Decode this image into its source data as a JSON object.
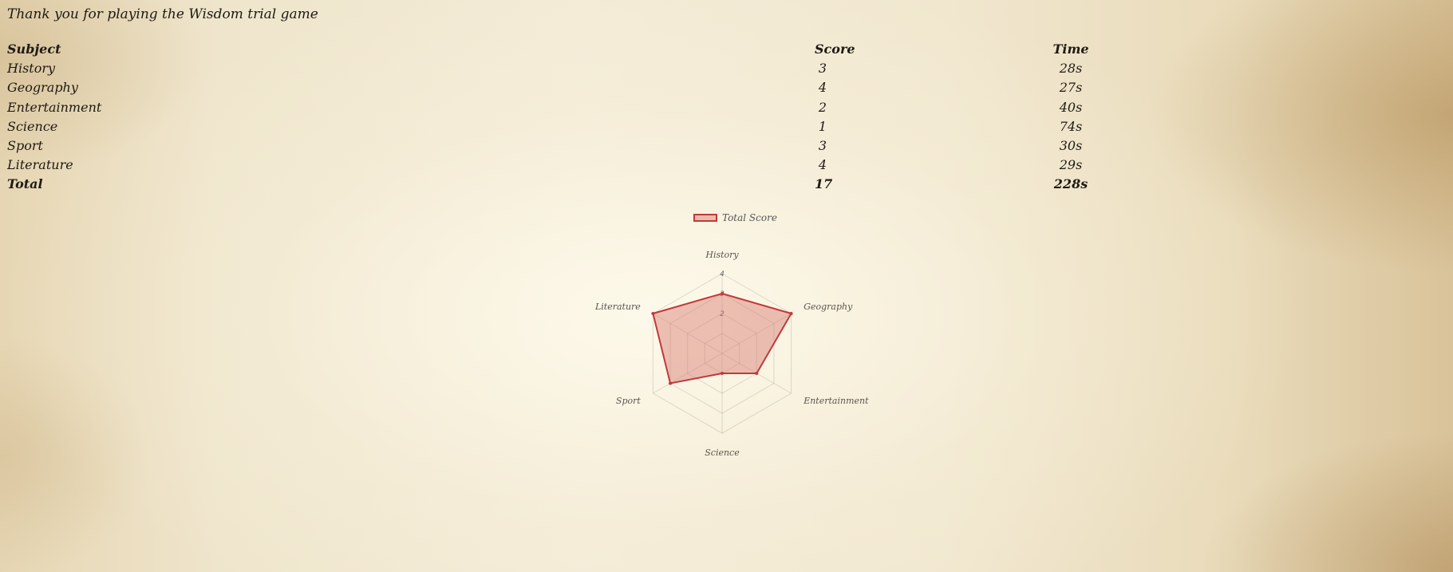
{
  "page": {
    "title": "Thank you for playing the Wisdom trial game"
  },
  "table": {
    "headers": {
      "subject": "Subject",
      "score": "Score",
      "time": "Time"
    },
    "rows": [
      {
        "subject": "History",
        "score": "3",
        "time": "28s"
      },
      {
        "subject": "Geography",
        "score": "4",
        "time": "27s"
      },
      {
        "subject": "Entertainment",
        "score": "2",
        "time": "40s"
      },
      {
        "subject": "Science",
        "score": "1",
        "time": "74s"
      },
      {
        "subject": "Sport",
        "score": "3",
        "time": "30s"
      },
      {
        "subject": "Literature",
        "score": "4",
        "time": "29s"
      }
    ],
    "total": {
      "subject": "Total",
      "score": "17",
      "time": "228s"
    }
  },
  "chart_data": {
    "type": "radar",
    "categories": [
      "History",
      "Geography",
      "Entertainment",
      "Science",
      "Sport",
      "Literature"
    ],
    "series": [
      {
        "name": "Total Score",
        "values": [
          3,
          4,
          2,
          1,
          3,
          4
        ],
        "color": "#c0393b",
        "fill": "rgba(214,120,110,0.45)"
      }
    ],
    "scale": {
      "min": 0,
      "max": 4,
      "tick_labels": [
        "2",
        "3",
        "4"
      ]
    },
    "legend_position": "top"
  }
}
